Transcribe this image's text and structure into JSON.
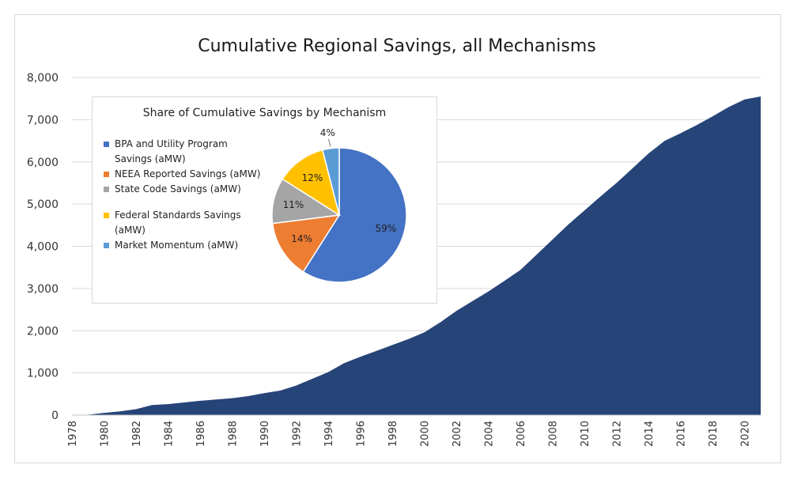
{
  "chart_data": [
    {
      "type": "area",
      "title": "Cumulative Regional Savings, all Mechanisms",
      "ylim": [
        0,
        8000
      ],
      "yticks": [
        "0",
        "1,000",
        "2,000",
        "3,000",
        "4,000",
        "5,000",
        "6,000",
        "7,000",
        "8,000"
      ],
      "xticks": [
        "1978",
        "1980",
        "1982",
        "1984",
        "1986",
        "1988",
        "1990",
        "1992",
        "1994",
        "1996",
        "1998",
        "2000",
        "2002",
        "2004",
        "2006",
        "2008",
        "2010",
        "2012",
        "2014",
        "2016",
        "2018",
        "2020"
      ],
      "grid": true,
      "color": "#264478",
      "x": [
        1978,
        1979,
        1980,
        1981,
        1982,
        1983,
        1984,
        1985,
        1986,
        1987,
        1988,
        1989,
        1990,
        1991,
        1992,
        1993,
        1994,
        1995,
        1996,
        1997,
        1998,
        1999,
        2000,
        2001,
        2002,
        2003,
        2004,
        2005,
        2006,
        2007,
        2008,
        2009,
        2010,
        2011,
        2012,
        2013,
        2014,
        2015,
        2016,
        2017,
        2018,
        2019,
        2020,
        2021
      ],
      "values": [
        0,
        10,
        50,
        90,
        140,
        240,
        260,
        300,
        340,
        370,
        400,
        450,
        520,
        580,
        700,
        860,
        1020,
        1230,
        1380,
        1520,
        1660,
        1800,
        1960,
        2200,
        2470,
        2700,
        2930,
        3180,
        3440,
        3800,
        4160,
        4520,
        4850,
        5180,
        5500,
        5850,
        6200,
        6500,
        6680,
        6870,
        7080,
        7300,
        7480,
        7550
      ]
    },
    {
      "type": "pie",
      "title": "Share of Cumulative Savings by Mechanism",
      "legend_position": "left",
      "slices": [
        {
          "name": "BPA and Utility Program Savings (aMW)",
          "value": 59,
          "label": "59%",
          "color": "#4472C4"
        },
        {
          "name": "NEEA Reported Savings (aMW)",
          "value": 14,
          "label": "14%",
          "color": "#ED7D31"
        },
        {
          "name": "State Code Savings (aMW)",
          "value": 11,
          "label": "11%",
          "color": "#A5A5A5"
        },
        {
          "name": "Federal Standards Savings (aMW)",
          "value": 12,
          "label": "12%",
          "color": "#FFC000"
        },
        {
          "name": "Market Momentum (aMW)",
          "value": 4,
          "label": "4%",
          "color": "#5B9BD5"
        }
      ]
    }
  ]
}
